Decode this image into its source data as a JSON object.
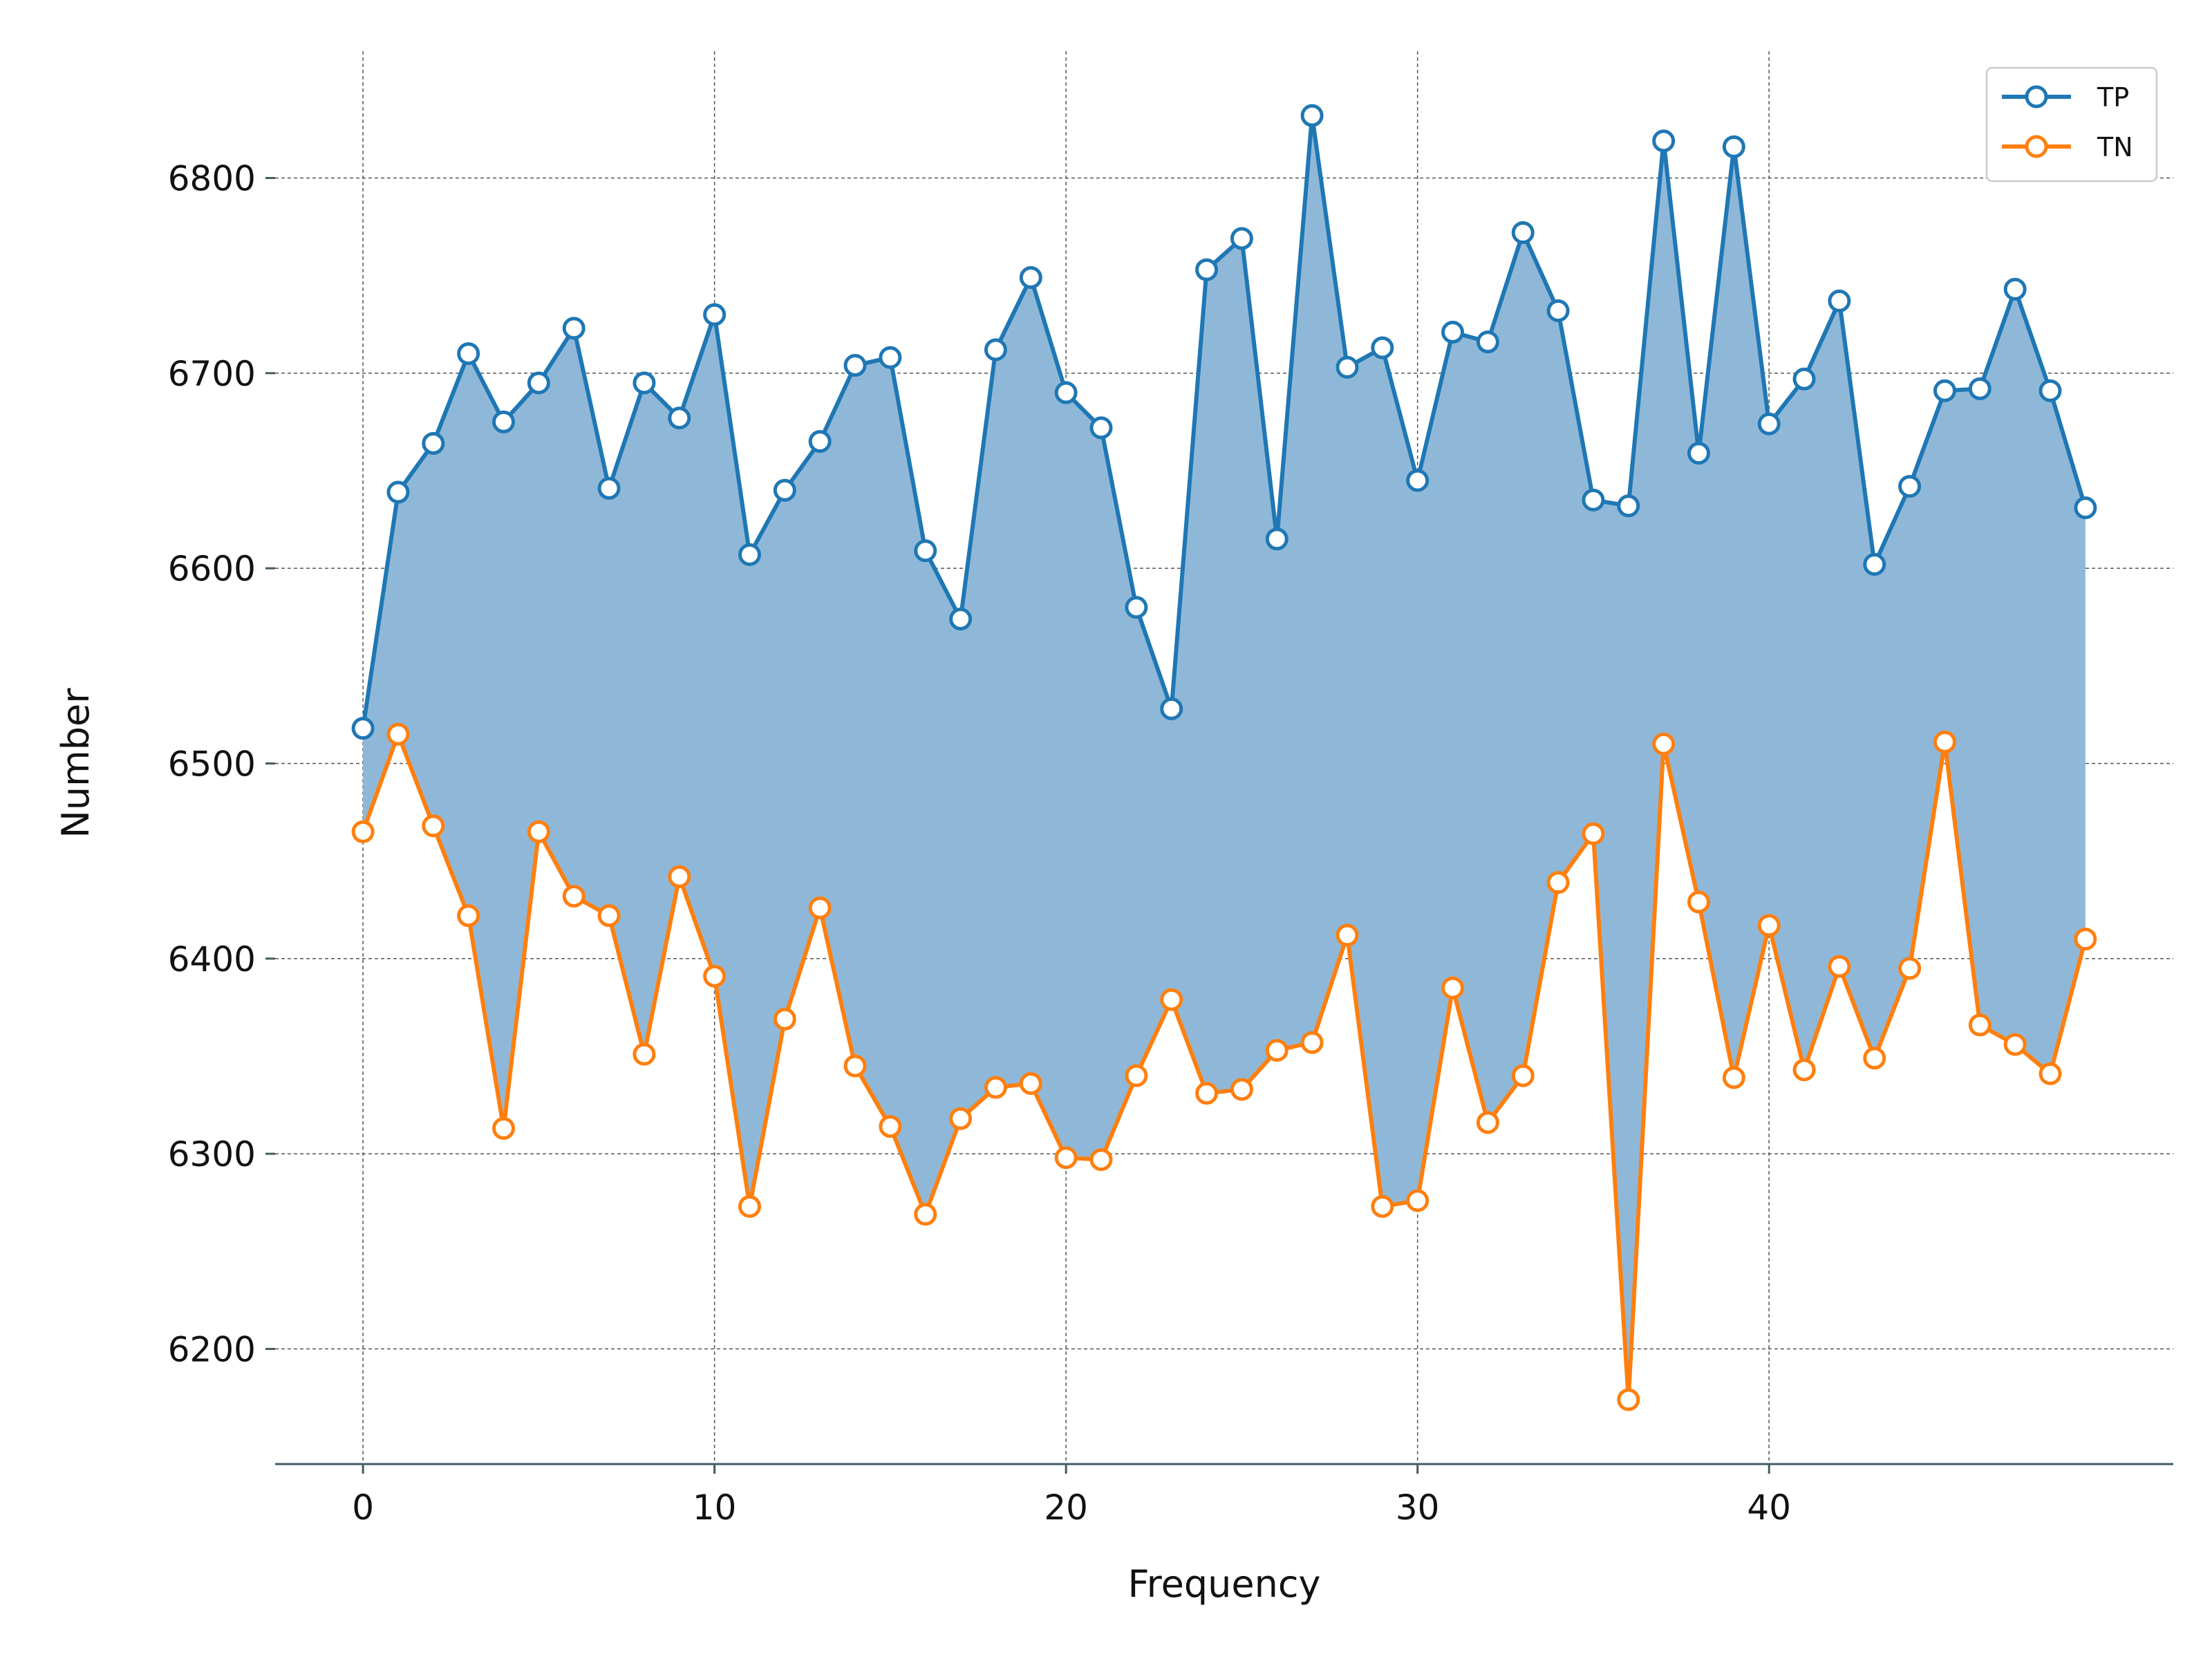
{
  "chart_data": {
    "type": "line",
    "title": "",
    "xlabel": "Frequency",
    "ylabel": "Number",
    "xlim": [
      -2.5,
      51.5
    ],
    "ylim": [
      6141,
      6865
    ],
    "xticks": [
      0,
      10,
      20,
      30,
      40
    ],
    "yticks": [
      6200,
      6300,
      6400,
      6500,
      6600,
      6700,
      6800
    ],
    "grid": true,
    "fill_between": {
      "series": [
        "TP",
        "TN"
      ],
      "color": "#8fb8d8"
    },
    "legend": {
      "position": "top-right"
    },
    "x": [
      0,
      1,
      2,
      3,
      4,
      5,
      6,
      7,
      8,
      9,
      10,
      11,
      12,
      13,
      14,
      15,
      16,
      17,
      18,
      19,
      20,
      21,
      22,
      23,
      24,
      25,
      26,
      27,
      28,
      29,
      30,
      31,
      32,
      33,
      34,
      35,
      36,
      37,
      38,
      39,
      40,
      41,
      42,
      43,
      44,
      45,
      46,
      47,
      48,
      49
    ],
    "series": [
      {
        "name": "TP",
        "color": "#1f77b4",
        "values": [
          6518,
          6639,
          6664,
          6710,
          6675,
          6695,
          6723,
          6641,
          6695,
          6677,
          6730,
          6607,
          6640,
          6665,
          6704,
          6708,
          6609,
          6574,
          6712,
          6749,
          6690,
          6672,
          6580,
          6528,
          6753,
          6769,
          6615,
          6832,
          6703,
          6713,
          6645,
          6721,
          6716,
          6772,
          6732,
          6635,
          6632,
          6819,
          6659,
          6816,
          6674,
          6697,
          6737,
          6602,
          6642,
          6691,
          6692,
          6743,
          6691,
          6631
        ]
      },
      {
        "name": "TN",
        "color": "#ff7f0e",
        "values": [
          6465,
          6515,
          6468,
          6422,
          6313,
          6465,
          6432,
          6422,
          6351,
          6442,
          6391,
          6273,
          6369,
          6426,
          6345,
          6314,
          6269,
          6318,
          6334,
          6336,
          6298,
          6297,
          6340,
          6379,
          6331,
          6333,
          6353,
          6357,
          6412,
          6273,
          6276,
          6385,
          6316,
          6340,
          6439,
          6464,
          6174,
          6510,
          6429,
          6339,
          6417,
          6343,
          6396,
          6349,
          6395,
          6511,
          6366,
          6356,
          6341,
          6410
        ]
      }
    ]
  }
}
